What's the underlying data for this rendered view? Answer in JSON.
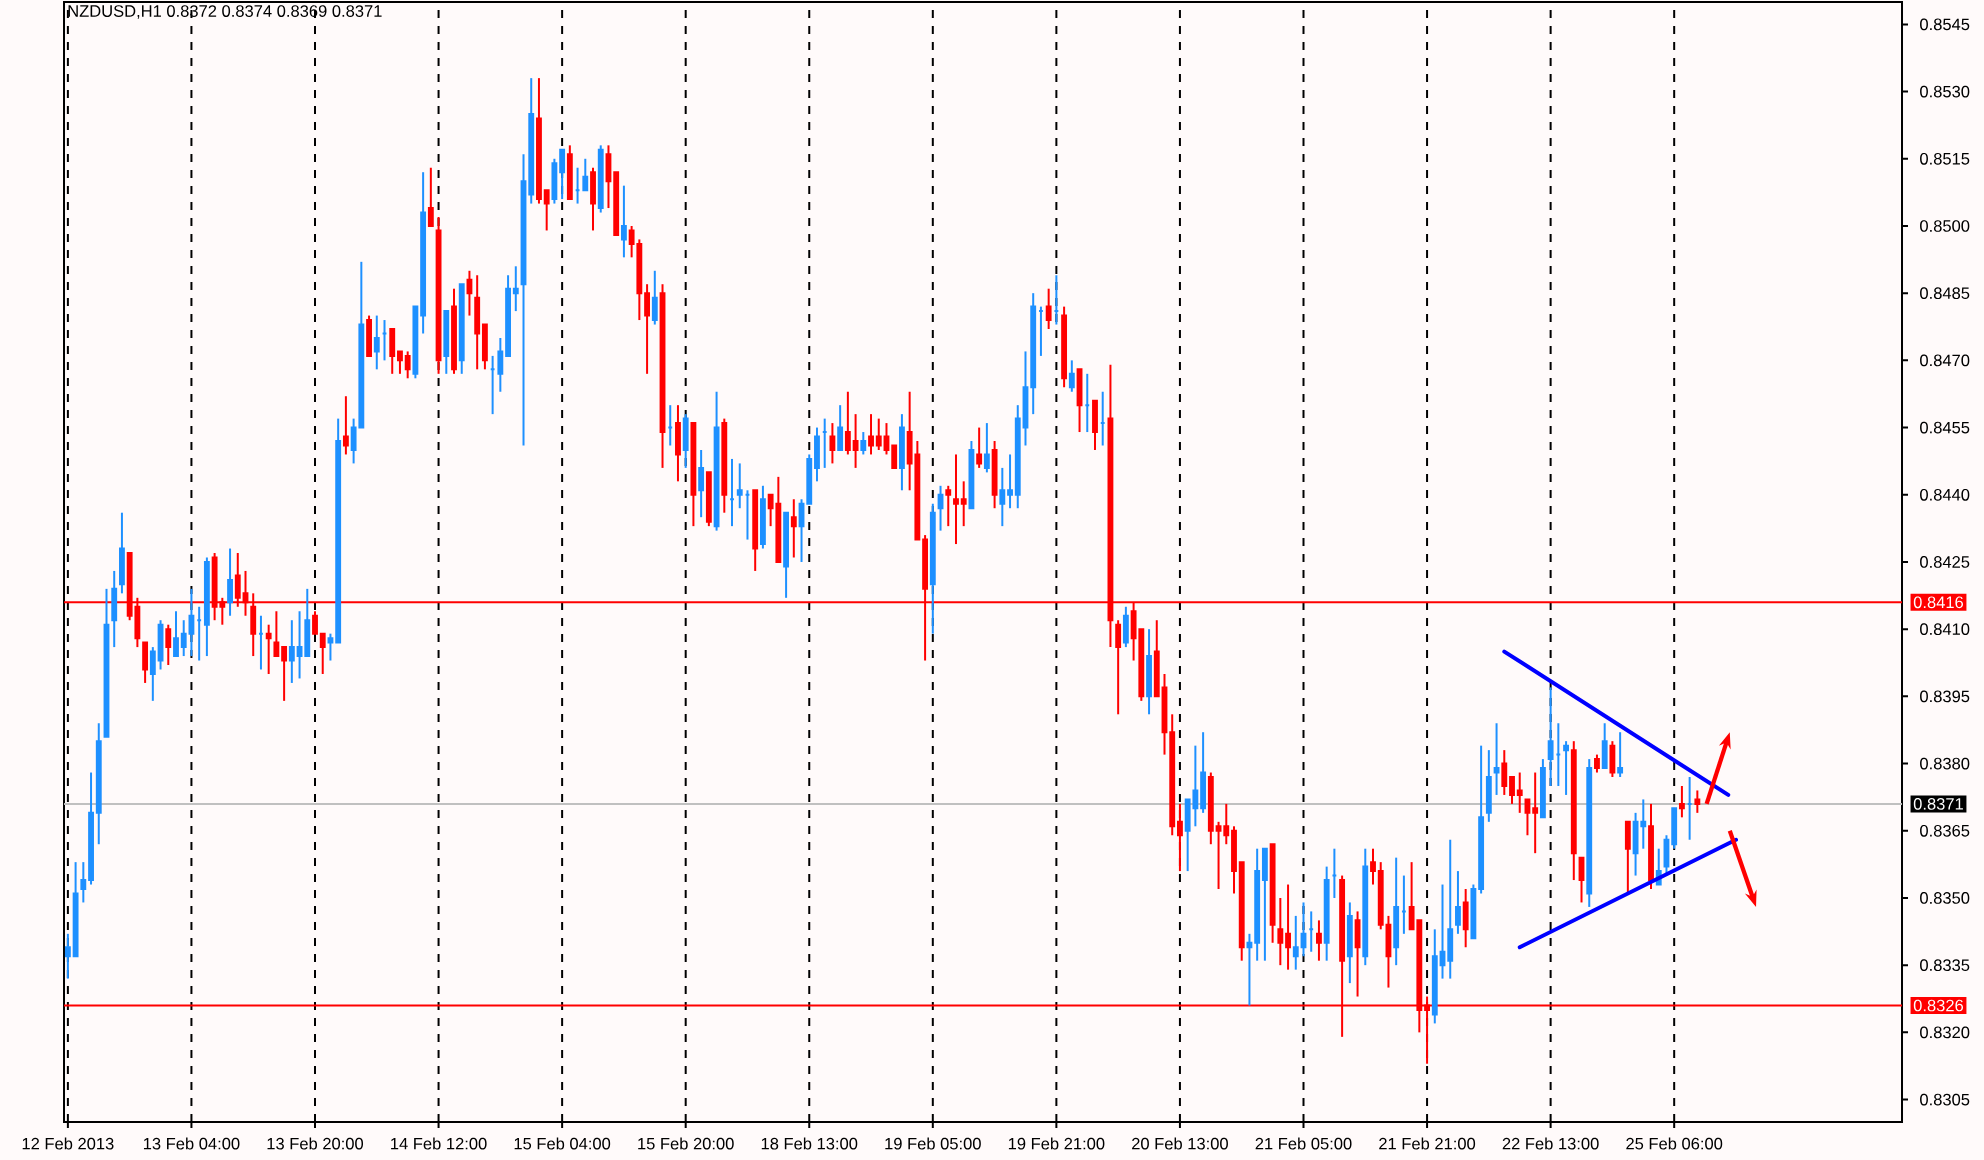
{
  "chart_data": {
    "type": "candlestick",
    "title": "NZDUSD,H1 0.8372 0.8374 0.8369 0.8371",
    "categories": [
      "12 Feb 2013",
      null,
      null,
      null,
      null,
      null,
      null,
      null,
      null,
      null,
      null,
      null,
      null,
      null,
      null,
      null,
      "13 Feb 04:00",
      null,
      null,
      null,
      null,
      null,
      null,
      null,
      null,
      null,
      null,
      null,
      null,
      null,
      null,
      null,
      "13 Feb 20:00",
      null,
      null,
      null,
      null,
      null,
      null,
      null,
      null,
      null,
      null,
      null,
      null,
      null,
      null,
      null,
      "14 Feb 12:00",
      null,
      null,
      null,
      null,
      null,
      null,
      null,
      null,
      null,
      null,
      null,
      null,
      null,
      null,
      null,
      "15 Feb 04:00",
      null,
      null,
      null,
      null,
      null,
      null,
      null,
      null,
      null,
      null,
      null,
      null,
      null,
      null,
      null,
      "15 Feb 20:00",
      null,
      null,
      null,
      null,
      null,
      null,
      null,
      null,
      null,
      null,
      null,
      null,
      null,
      null,
      null,
      "18 Feb 13:00",
      null,
      null,
      null,
      null,
      null,
      null,
      null,
      null,
      null,
      null,
      null,
      null,
      null,
      null,
      null,
      "19 Feb 05:00",
      null,
      null,
      null,
      null,
      null,
      null,
      null,
      null,
      null,
      null,
      null,
      null,
      null,
      null,
      null,
      "19 Feb 21:00",
      null,
      null,
      null,
      null,
      null,
      null,
      null,
      null,
      null,
      null,
      null,
      null,
      null,
      null,
      null,
      "20 Feb 13:00",
      null,
      null,
      null,
      null,
      null,
      null,
      null,
      null,
      null,
      null,
      null,
      null,
      null,
      null,
      null,
      "21 Feb 05:00",
      null,
      null,
      null,
      null,
      null,
      null,
      null,
      null,
      null,
      null,
      null,
      null,
      null,
      null,
      null,
      "21 Feb 21:00",
      null,
      null,
      null,
      null,
      null,
      null,
      null,
      null,
      null,
      null,
      null,
      null,
      null,
      null,
      null,
      "22 Feb 13:00",
      null,
      null,
      null,
      null,
      null,
      null,
      null,
      null,
      null,
      null,
      null,
      null,
      null,
      null,
      null,
      "25 Feb 06:00",
      null,
      null,
      null,
      null,
      null,
      null,
      null,
      null,
      null,
      null,
      null,
      null,
      null,
      null,
      null,
      null,
      null,
      null,
      null,
      null,
      null,
      null,
      null,
      null,
      null,
      null,
      null,
      null,
      null
    ],
    "ohlc": [
      [
        0.8337,
        0.8342,
        0.8332,
        0.8339
      ],
      [
        0.8337,
        0.8358,
        0.8337,
        0.8351
      ],
      [
        0.8352,
        0.8358,
        0.8349,
        0.8354
      ],
      [
        0.8354,
        0.8378,
        0.8353,
        0.8369
      ],
      [
        0.8369,
        0.8389,
        0.8362,
        0.8385
      ],
      [
        0.8386,
        0.8419,
        0.8386,
        0.8411
      ],
      [
        0.8412,
        0.8423,
        0.8406,
        0.8419
      ],
      [
        0.842,
        0.8436,
        0.8418,
        0.8428
      ],
      [
        0.8427,
        0.8427,
        0.8412,
        0.8413
      ],
      [
        0.8415,
        0.8417,
        0.8406,
        0.8408
      ],
      [
        0.8407,
        0.8407,
        0.8398,
        0.8401
      ],
      [
        0.84,
        0.8406,
        0.8394,
        0.8405
      ],
      [
        0.8403,
        0.8412,
        0.8401,
        0.8411
      ],
      [
        0.841,
        0.8411,
        0.8402,
        0.8406
      ],
      [
        0.8404,
        0.8414,
        0.8404,
        0.8408
      ],
      [
        0.8406,
        0.8412,
        0.8404,
        0.8409
      ],
      [
        0.8409,
        0.8419,
        0.8404,
        0.8413
      ],
      [
        0.8412,
        0.8415,
        0.8403,
        0.8412
      ],
      [
        0.8411,
        0.8426,
        0.8404,
        0.8425
      ],
      [
        0.8426,
        0.8427,
        0.8412,
        0.8415
      ],
      [
        0.8416,
        0.8417,
        0.8411,
        0.8415
      ],
      [
        0.8416,
        0.8428,
        0.8413,
        0.8421
      ],
      [
        0.8422,
        0.8427,
        0.8415,
        0.8417
      ],
      [
        0.8418,
        0.8423,
        0.8413,
        0.8416
      ],
      [
        0.8415,
        0.8418,
        0.8404,
        0.8409
      ],
      [
        0.8409,
        0.8413,
        0.8401,
        0.8409
      ],
      [
        0.8409,
        0.8411,
        0.84,
        0.8408
      ],
      [
        0.8407,
        0.8414,
        0.8404,
        0.8404
      ],
      [
        0.8406,
        0.8406,
        0.8394,
        0.8403
      ],
      [
        0.8403,
        0.8412,
        0.8398,
        0.8406
      ],
      [
        0.8404,
        0.8414,
        0.8399,
        0.8406
      ],
      [
        0.8404,
        0.8419,
        0.8404,
        0.8412
      ],
      [
        0.8413,
        0.8414,
        0.8409,
        0.8409
      ],
      [
        0.8409,
        0.8409,
        0.84,
        0.8406
      ],
      [
        0.8407,
        0.8409,
        0.8403,
        0.8408
      ],
      [
        0.8407,
        0.8457,
        0.8407,
        0.8452
      ],
      [
        0.8453,
        0.8462,
        0.8449,
        0.8451
      ],
      [
        0.845,
        0.8457,
        0.8447,
        0.8455
      ],
      [
        0.8455,
        0.8492,
        0.8455,
        0.8478
      ],
      [
        0.8479,
        0.848,
        0.8471,
        0.8471
      ],
      [
        0.8472,
        0.848,
        0.8468,
        0.8475
      ],
      [
        0.8476,
        0.8479,
        0.847,
        0.8476
      ],
      [
        0.8477,
        0.8477,
        0.8467,
        0.8471
      ],
      [
        0.8472,
        0.8472,
        0.8467,
        0.847
      ],
      [
        0.8471,
        0.8472,
        0.8466,
        0.8468
      ],
      [
        0.8467,
        0.8482,
        0.8466,
        0.8482
      ],
      [
        0.848,
        0.8512,
        0.8476,
        0.8503
      ],
      [
        0.8504,
        0.8513,
        0.85,
        0.85
      ],
      [
        0.8499,
        0.8502,
        0.8467,
        0.847
      ],
      [
        0.8471,
        0.8481,
        0.8467,
        0.8481
      ],
      [
        0.8482,
        0.8486,
        0.8467,
        0.8468
      ],
      [
        0.847,
        0.8487,
        0.8467,
        0.8487
      ],
      [
        0.8488,
        0.849,
        0.848,
        0.8485
      ],
      [
        0.8484,
        0.8489,
        0.8468,
        0.8476
      ],
      [
        0.8478,
        0.8478,
        0.8468,
        0.847
      ],
      [
        0.8468,
        0.8471,
        0.8458,
        0.8468
      ],
      [
        0.8467,
        0.8475,
        0.8463,
        0.8472
      ],
      [
        0.8471,
        0.8489,
        0.8471,
        0.8486
      ],
      [
        0.8485,
        0.8491,
        0.8481,
        0.8486
      ],
      [
        0.8487,
        0.8516,
        0.8451,
        0.851
      ],
      [
        0.8507,
        0.8533,
        0.8505,
        0.8525
      ],
      [
        0.8524,
        0.8533,
        0.8505,
        0.8506
      ],
      [
        0.8508,
        0.8508,
        0.8499,
        0.8505
      ],
      [
        0.8506,
        0.8515,
        0.8505,
        0.8514
      ],
      [
        0.8512,
        0.8517,
        0.8506,
        0.8517
      ],
      [
        0.8516,
        0.8518,
        0.8506,
        0.8506
      ],
      [
        0.8508,
        0.8513,
        0.8505,
        0.8508
      ],
      [
        0.8508,
        0.8515,
        0.8508,
        0.8511
      ],
      [
        0.8512,
        0.8513,
        0.8499,
        0.8505
      ],
      [
        0.8504,
        0.8518,
        0.8503,
        0.8517
      ],
      [
        0.8516,
        0.8518,
        0.8504,
        0.851
      ],
      [
        0.8512,
        0.8512,
        0.8498,
        0.8498
      ],
      [
        0.8497,
        0.8509,
        0.8493,
        0.85
      ],
      [
        0.8499,
        0.85,
        0.8493,
        0.8496
      ],
      [
        0.8496,
        0.8497,
        0.8479,
        0.8485
      ],
      [
        0.8485,
        0.8487,
        0.8467,
        0.848
      ],
      [
        0.8479,
        0.849,
        0.8478,
        0.8484
      ],
      [
        0.8485,
        0.8487,
        0.8446,
        0.8454
      ],
      [
        0.8455,
        0.846,
        0.8451,
        0.8455
      ],
      [
        0.8456,
        0.846,
        0.8443,
        0.8449
      ],
      [
        0.845,
        0.8458,
        0.8446,
        0.8457
      ],
      [
        0.8456,
        0.8456,
        0.8433,
        0.844
      ],
      [
        0.8441,
        0.845,
        0.8435,
        0.8446
      ],
      [
        0.8445,
        0.8445,
        0.8433,
        0.8434
      ],
      [
        0.8433,
        0.8463,
        0.8432,
        0.8455
      ],
      [
        0.8456,
        0.8457,
        0.8436,
        0.844
      ],
      [
        0.8439,
        0.8448,
        0.8433,
        0.8439
      ],
      [
        0.844,
        0.8447,
        0.8437,
        0.8441
      ],
      [
        0.844,
        0.8441,
        0.843,
        0.844
      ],
      [
        0.8441,
        0.8441,
        0.8423,
        0.8428
      ],
      [
        0.8429,
        0.8442,
        0.8428,
        0.8439
      ],
      [
        0.844,
        0.844,
        0.8433,
        0.8437
      ],
      [
        0.8438,
        0.8444,
        0.8425,
        0.8425
      ],
      [
        0.8424,
        0.8436,
        0.8417,
        0.8436
      ],
      [
        0.8435,
        0.8439,
        0.8426,
        0.8433
      ],
      [
        0.8433,
        0.8439,
        0.8425,
        0.8438
      ],
      [
        0.8438,
        0.8449,
        0.8438,
        0.8448
      ],
      [
        0.8446,
        0.8455,
        0.8443,
        0.8453
      ],
      [
        0.8454,
        0.8457,
        0.8446,
        0.8454
      ],
      [
        0.8453,
        0.8456,
        0.8447,
        0.845
      ],
      [
        0.845,
        0.846,
        0.845,
        0.8455
      ],
      [
        0.8454,
        0.8463,
        0.8449,
        0.845
      ],
      [
        0.8452,
        0.8458,
        0.8446,
        0.845
      ],
      [
        0.845,
        0.8454,
        0.8449,
        0.8452
      ],
      [
        0.8453,
        0.8458,
        0.8449,
        0.8451
      ],
      [
        0.8453,
        0.8457,
        0.845,
        0.8451
      ],
      [
        0.8453,
        0.8456,
        0.8449,
        0.845
      ],
      [
        0.8451,
        0.8451,
        0.8446,
        0.8446
      ],
      [
        0.8446,
        0.8458,
        0.8441,
        0.8455
      ],
      [
        0.8454,
        0.8463,
        0.8441,
        0.8447
      ],
      [
        0.8449,
        0.8452,
        0.843,
        0.843
      ],
      [
        0.843,
        0.8431,
        0.8403,
        0.8419
      ],
      [
        0.842,
        0.8438,
        0.8409,
        0.8436
      ],
      [
        0.8437,
        0.8442,
        0.8432,
        0.844
      ],
      [
        0.8441,
        0.8442,
        0.8433,
        0.844
      ],
      [
        0.8439,
        0.8449,
        0.8429,
        0.8438
      ],
      [
        0.8439,
        0.8443,
        0.8433,
        0.8438
      ],
      [
        0.8437,
        0.8452,
        0.8437,
        0.845
      ],
      [
        0.8449,
        0.8455,
        0.8446,
        0.8447
      ],
      [
        0.8446,
        0.8456,
        0.8445,
        0.8449
      ],
      [
        0.845,
        0.8452,
        0.8437,
        0.844
      ],
      [
        0.8438,
        0.8446,
        0.8433,
        0.8441
      ],
      [
        0.844,
        0.8449,
        0.8437,
        0.8441
      ],
      [
        0.844,
        0.846,
        0.8437,
        0.8457
      ],
      [
        0.8455,
        0.8472,
        0.8451,
        0.8464
      ],
      [
        0.8464,
        0.8485,
        0.8458,
        0.8482
      ],
      [
        0.8481,
        0.8482,
        0.8471,
        0.8481
      ],
      [
        0.8482,
        0.8486,
        0.8477,
        0.8479
      ],
      [
        0.8481,
        0.8489,
        0.8478,
        0.8481
      ],
      [
        0.848,
        0.8482,
        0.8464,
        0.8466
      ],
      [
        0.8464,
        0.847,
        0.8463,
        0.8467
      ],
      [
        0.8468,
        0.8468,
        0.8454,
        0.846
      ],
      [
        0.846,
        0.8467,
        0.8454,
        0.846
      ],
      [
        0.8461,
        0.8461,
        0.845,
        0.8454
      ],
      [
        0.8456,
        0.8463,
        0.8451,
        0.8456
      ],
      [
        0.8457,
        0.8469,
        0.8406,
        0.8412
      ],
      [
        0.8411,
        0.8412,
        0.8391,
        0.8406
      ],
      [
        0.8407,
        0.8415,
        0.8406,
        0.8413
      ],
      [
        0.8414,
        0.8416,
        0.8403,
        0.8408
      ],
      [
        0.841,
        0.841,
        0.8394,
        0.8395
      ],
      [
        0.8395,
        0.841,
        0.8391,
        0.8404
      ],
      [
        0.8405,
        0.8412,
        0.8395,
        0.8395
      ],
      [
        0.8397,
        0.84,
        0.8382,
        0.8387
      ],
      [
        0.8387,
        0.8391,
        0.8364,
        0.8366
      ],
      [
        0.8367,
        0.8371,
        0.8356,
        0.8364
      ],
      [
        0.8365,
        0.8372,
        0.8356,
        0.8372
      ],
      [
        0.837,
        0.8384,
        0.8366,
        0.8374
      ],
      [
        0.837,
        0.8387,
        0.8369,
        0.8378
      ],
      [
        0.8377,
        0.8378,
        0.8362,
        0.8365
      ],
      [
        0.8366,
        0.8367,
        0.8352,
        0.8365
      ],
      [
        0.8366,
        0.8371,
        0.8362,
        0.8364
      ],
      [
        0.8365,
        0.8366,
        0.8351,
        0.8356
      ],
      [
        0.8358,
        0.8358,
        0.8336,
        0.8339
      ],
      [
        0.8339,
        0.8342,
        0.8326,
        0.834
      ],
      [
        0.834,
        0.8361,
        0.8336,
        0.8356
      ],
      [
        0.8354,
        0.8361,
        0.8336,
        0.8361
      ],
      [
        0.8362,
        0.8362,
        0.834,
        0.8344
      ],
      [
        0.8343,
        0.835,
        0.8335,
        0.834
      ],
      [
        0.8342,
        0.8353,
        0.8334,
        0.8339
      ],
      [
        0.8337,
        0.8346,
        0.8334,
        0.8339
      ],
      [
        0.8339,
        0.8349,
        0.8337,
        0.8342
      ],
      [
        0.8343,
        0.8347,
        0.8338,
        0.8343
      ],
      [
        0.8342,
        0.8345,
        0.8336,
        0.834
      ],
      [
        0.834,
        0.8357,
        0.8336,
        0.8354
      ],
      [
        0.8355,
        0.8361,
        0.835,
        0.8355
      ],
      [
        0.8354,
        0.8355,
        0.8319,
        0.8336
      ],
      [
        0.8337,
        0.8349,
        0.8331,
        0.8346
      ],
      [
        0.8345,
        0.8347,
        0.8328,
        0.8339
      ],
      [
        0.8337,
        0.8361,
        0.8335,
        0.8357
      ],
      [
        0.8358,
        0.8361,
        0.8353,
        0.8356
      ],
      [
        0.8356,
        0.8358,
        0.8343,
        0.8344
      ],
      [
        0.8344,
        0.8346,
        0.833,
        0.8337
      ],
      [
        0.8339,
        0.8359,
        0.8335,
        0.8348
      ],
      [
        0.8347,
        0.8355,
        0.8342,
        0.8347
      ],
      [
        0.8348,
        0.8358,
        0.8343,
        0.8343
      ],
      [
        0.8345,
        0.8345,
        0.832,
        0.8325
      ],
      [
        0.8326,
        0.8328,
        0.8313,
        0.8325
      ],
      [
        0.8324,
        0.8343,
        0.8322,
        0.8337
      ],
      [
        0.8335,
        0.8353,
        0.8332,
        0.8338
      ],
      [
        0.8336,
        0.8363,
        0.8332,
        0.8343
      ],
      [
        0.8344,
        0.8356,
        0.8342,
        0.8348
      ],
      [
        0.8349,
        0.8352,
        0.8339,
        0.8343
      ],
      [
        0.8341,
        0.8353,
        0.8341,
        0.8352
      ],
      [
        0.8352,
        0.8384,
        0.8351,
        0.8368
      ],
      [
        0.8369,
        0.8383,
        0.8367,
        0.8377
      ],
      [
        0.8378,
        0.8389,
        0.8373,
        0.8379
      ],
      [
        0.838,
        0.8383,
        0.8373,
        0.8375
      ],
      [
        0.8377,
        0.8377,
        0.8371,
        0.8373
      ],
      [
        0.8374,
        0.8378,
        0.8369,
        0.8373
      ],
      [
        0.8372,
        0.8372,
        0.8364,
        0.8369
      ],
      [
        0.837,
        0.8378,
        0.836,
        0.8369
      ],
      [
        0.8368,
        0.8381,
        0.8368,
        0.8379
      ],
      [
        0.8381,
        0.8397,
        0.8375,
        0.8385
      ],
      [
        0.8382,
        0.8389,
        0.8375,
        0.8382
      ],
      [
        0.8383,
        0.8385,
        0.8373,
        0.8384
      ],
      [
        0.8383,
        0.8385,
        0.8354,
        0.836
      ],
      [
        0.8359,
        0.8359,
        0.8349,
        0.8354
      ],
      [
        0.8351,
        0.8381,
        0.8348,
        0.8379
      ],
      [
        0.8381,
        0.8382,
        0.8378,
        0.8379
      ],
      [
        0.8379,
        0.8389,
        0.8379,
        0.8385
      ],
      [
        0.8384,
        0.8385,
        0.8377,
        0.8378
      ],
      [
        0.8378,
        0.8387,
        0.8377,
        0.8379
      ],
      [
        0.8367,
        0.8367,
        0.8351,
        0.8361
      ],
      [
        0.836,
        0.8369,
        0.8355,
        0.8367
      ],
      [
        0.8366,
        0.8372,
        0.8361,
        0.8367
      ],
      [
        0.8366,
        0.8371,
        0.8352,
        0.8354
      ],
      [
        0.8353,
        0.8361,
        0.8353,
        0.8356
      ],
      [
        0.8357,
        0.8364,
        0.8355,
        0.8363
      ],
      [
        0.8362,
        0.837,
        0.8361,
        0.837
      ],
      [
        0.8371,
        0.8375,
        0.8368,
        0.837
      ],
      [
        0.8371,
        0.8377,
        0.8363,
        0.8371
      ],
      [
        0.8372,
        0.8374,
        0.8369,
        0.8371
      ],
      null,
      null,
      null,
      null,
      null,
      null,
      null,
      null,
      null,
      null,
      null,
      null,
      null,
      null,
      null,
      null,
      null,
      null,
      null,
      null,
      null,
      null,
      null,
      null,
      null,
      null
    ],
    "series": [
      {
        "type": "line",
        "color": "#0000ff",
        "values": [
          null,
          null,
          null,
          null,
          null,
          null,
          null,
          null,
          null,
          null,
          null,
          null,
          null,
          null,
          null,
          null,
          null,
          null,
          null,
          null,
          null,
          null,
          null,
          null,
          null,
          null,
          null,
          null,
          null,
          null,
          null,
          null,
          null,
          null,
          null,
          null,
          null,
          null,
          null,
          null,
          null,
          null,
          null,
          null,
          null,
          null,
          null,
          null,
          null,
          null,
          null,
          null,
          null,
          null,
          null,
          null,
          null,
          null,
          null,
          null,
          null,
          null,
          null,
          null,
          null,
          null,
          null,
          null,
          null,
          null,
          null,
          null,
          null,
          null,
          null,
          null,
          null,
          null,
          null,
          null,
          null,
          null,
          null,
          null,
          null,
          null,
          null,
          null,
          null,
          null,
          null,
          null,
          null,
          null,
          null,
          null,
          null,
          null,
          null,
          null,
          null,
          null,
          null,
          null,
          null,
          null,
          null,
          null,
          null,
          null,
          null,
          null,
          null,
          null,
          null,
          null,
          null,
          null,
          null,
          null,
          null,
          null,
          null,
          null,
          null,
          null,
          null,
          null,
          null,
          null,
          null,
          null,
          null,
          null,
          null,
          null,
          null,
          null,
          null,
          null,
          null,
          null,
          null,
          null,
          null,
          null,
          null,
          null,
          null,
          null,
          null,
          null,
          null,
          null,
          null,
          null,
          null,
          null,
          null,
          null,
          null,
          null,
          null,
          null,
          null,
          null,
          null,
          null,
          null,
          null,
          null,
          null,
          null,
          null,
          null,
          null,
          null,
          null,
          null,
          null,
          null,
          null,
          null,
          null,
          null,
          null,
          0.8405,
          null,
          null,
          null,
          null,
          null,
          null,
          null,
          null,
          null,
          null,
          null,
          null,
          null,
          null,
          null,
          null,
          null,
          null,
          null,
          null,
          null,
          null,
          null,
          null,
          null,
          null,
          null,
          null,
          0.8373,
          null,
          null,
          null,
          null,
          null,
          null,
          null,
          null,
          null,
          null,
          null,
          null,
          null,
          null,
          null,
          null,
          null,
          null,
          null,
          null,
          null,
          null
        ]
      },
      {
        "type": "line",
        "color": "#0000ff",
        "values": [
          null,
          null,
          null,
          null,
          null,
          null,
          null,
          null,
          null,
          null,
          null,
          null,
          null,
          null,
          null,
          null,
          null,
          null,
          null,
          null,
          null,
          null,
          null,
          null,
          null,
          null,
          null,
          null,
          null,
          null,
          null,
          null,
          null,
          null,
          null,
          null,
          null,
          null,
          null,
          null,
          null,
          null,
          null,
          null,
          null,
          null,
          null,
          null,
          null,
          null,
          null,
          null,
          null,
          null,
          null,
          null,
          null,
          null,
          null,
          null,
          null,
          null,
          null,
          null,
          null,
          null,
          null,
          null,
          null,
          null,
          null,
          null,
          null,
          null,
          null,
          null,
          null,
          null,
          null,
          null,
          null,
          null,
          null,
          null,
          null,
          null,
          null,
          null,
          null,
          null,
          null,
          null,
          null,
          null,
          null,
          null,
          null,
          null,
          null,
          null,
          null,
          null,
          null,
          null,
          null,
          null,
          null,
          null,
          null,
          null,
          null,
          null,
          null,
          null,
          null,
          null,
          null,
          null,
          null,
          null,
          null,
          null,
          null,
          null,
          null,
          null,
          null,
          null,
          null,
          null,
          null,
          null,
          null,
          null,
          null,
          null,
          null,
          null,
          null,
          null,
          null,
          null,
          null,
          null,
          null,
          null,
          null,
          null,
          null,
          null,
          null,
          null,
          null,
          null,
          null,
          null,
          null,
          null,
          null,
          null,
          null,
          null,
          null,
          null,
          null,
          null,
          null,
          null,
          null,
          null,
          null,
          null,
          null,
          null,
          null,
          null,
          null,
          null,
          null,
          null,
          null,
          null,
          null,
          null,
          null,
          null,
          null,
          null,
          0.8339,
          null,
          null,
          null,
          null,
          null,
          null,
          null,
          null,
          null,
          null,
          null,
          null,
          null,
          null,
          null,
          null,
          null,
          null,
          null,
          null,
          null,
          null,
          null,
          null,
          null,
          null,
          null,
          0.8363,
          null,
          null,
          null,
          null,
          null,
          null,
          null,
          null,
          null,
          null,
          null,
          null,
          null,
          null,
          null,
          null,
          null,
          null,
          null,
          null,
          null
        ]
      }
    ],
    "ylim": [
      0.83,
      0.855
    ],
    "yticks": [
      {
        "value": 0.8305,
        "label": "0.8305"
      },
      {
        "value": 0.832,
        "label": "0.8320"
      },
      {
        "value": 0.8335,
        "label": "0.8335"
      },
      {
        "value": 0.835,
        "label": "0.8350"
      },
      {
        "value": 0.8365,
        "label": "0.8365"
      },
      {
        "value": 0.838,
        "label": "0.8380"
      },
      {
        "value": 0.8395,
        "label": "0.8395"
      },
      {
        "value": 0.841,
        "label": "0.8410"
      },
      {
        "value": 0.8425,
        "label": "0.8425"
      },
      {
        "value": 0.844,
        "label": "0.8440"
      },
      {
        "value": 0.8455,
        "label": "0.8455"
      },
      {
        "value": 0.847,
        "label": "0.8470"
      },
      {
        "value": 0.8485,
        "label": "0.8485"
      },
      {
        "value": 0.85,
        "label": "0.8500"
      },
      {
        "value": 0.8515,
        "label": "0.8515"
      },
      {
        "value": 0.853,
        "label": "0.8530"
      },
      {
        "value": 0.8545,
        "label": "0.8545"
      }
    ],
    "ref_lines": [
      {
        "axis": "y",
        "value": 0.8416,
        "label": "0.8416",
        "color": "#ff0000"
      },
      {
        "axis": "y",
        "value": 0.8371,
        "label": "0.8371",
        "color": "#c0c0c0"
      },
      {
        "axis": "y",
        "value": 0.8326,
        "label": "0.8326",
        "color": "#ff0000"
      }
    ],
    "grid": "x"
  }
}
